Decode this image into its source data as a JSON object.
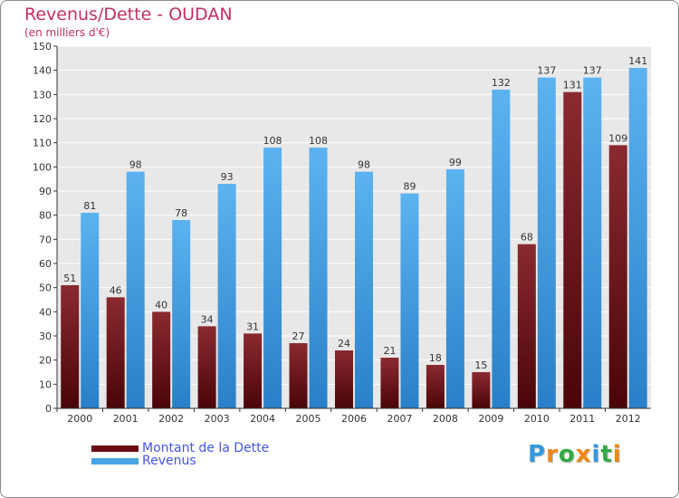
{
  "header": {
    "title": "Revenus/Dette - OUDAN",
    "subtitle": "(en milliers d'€)"
  },
  "chart_data": {
    "type": "bar",
    "title": "Revenus/Dette - OUDAN",
    "ylabel": "(en milliers d'€)",
    "xlabel": "",
    "ylim": [
      0,
      150
    ],
    "ytick_step": 10,
    "grid": true,
    "legend_position": "bottom-left",
    "categories": [
      "2000",
      "2001",
      "2002",
      "2003",
      "2004",
      "2005",
      "2006",
      "2007",
      "2008",
      "2009",
      "2010",
      "2011",
      "2012"
    ],
    "series": [
      {
        "name": "Montant de la Dette",
        "color": "#7a1a20",
        "values": [
          51,
          46,
          40,
          34,
          31,
          27,
          24,
          21,
          18,
          15,
          68,
          131,
          109
        ]
      },
      {
        "name": "Revenus",
        "color": "#4aa3e8",
        "values": [
          81,
          98,
          78,
          93,
          108,
          108,
          98,
          89,
          99,
          132,
          137,
          137,
          141
        ]
      }
    ]
  },
  "legend": {
    "items": [
      {
        "label": "Montant de la Dette",
        "color": "#6a0f14"
      },
      {
        "label": "Revenus",
        "color": "#4aa3e8"
      }
    ]
  },
  "logo": {
    "letters": [
      "P",
      "r",
      "o",
      "x",
      "i",
      "t",
      "i"
    ],
    "colors": [
      "#3399dd",
      "#ee8811",
      "#33aa44",
      "#ee8811",
      "#3399dd",
      "#33aa44",
      "#ee8811"
    ]
  }
}
